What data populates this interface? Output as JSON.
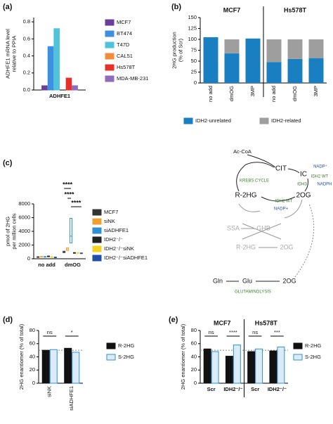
{
  "chart_data": [
    {
      "type": "bar",
      "panel": "(a)",
      "y_label": [
        "ADHFE1 mRNA level",
        "relative to PPIA"
      ],
      "categories": [
        "ADHFE1"
      ],
      "series": [
        {
          "name": "MCF7",
          "color": "#6a3d9a",
          "values": [
            0.05
          ]
        },
        {
          "name": "BT474",
          "color": "#3d8fe0",
          "values": [
            0.51
          ]
        },
        {
          "name": "T47D",
          "color": "#4fc3d9",
          "values": [
            0.72
          ]
        },
        {
          "name": "CAL51",
          "color": "#f28c38",
          "values": [
            0.0
          ]
        },
        {
          "name": "Hs578T",
          "color": "#e8302a",
          "values": [
            0.14
          ]
        },
        {
          "name": "MDA-MB-231",
          "color": "#8e6bbf",
          "values": [
            0.05
          ]
        }
      ],
      "ylim": [
        0,
        0.85
      ],
      "yticks": [
        {
          "value": 0,
          "label": "0.0"
        },
        0.2,
        0.4,
        0.6,
        0.8
      ]
    },
    {
      "type": "stacked_bar",
      "panel": "(b)",
      "y_label": [
        "2HG production",
        "(% of Scr)"
      ],
      "groups": [
        "MCF7",
        "Hs578T"
      ],
      "categories": [
        "no add",
        "dmOG",
        "3MP",
        "no add",
        "dmOG",
        "3MP"
      ],
      "series": [
        {
          "name": "IDH2-unrelated",
          "color": "#1a7fc1",
          "values": [
            105,
            68,
            102,
            48,
            55,
            57
          ]
        },
        {
          "name": "IDH2-related",
          "color": "#9e9e9e",
          "values": [
            0,
            32,
            0,
            52,
            45,
            43
          ]
        }
      ],
      "ylim": [
        0,
        150
      ],
      "yticks": [
        0,
        25,
        50,
        75,
        100,
        125,
        150
      ],
      "xtick_rotation": -90
    },
    {
      "type": "box",
      "panel": "(c)",
      "y_label": [
        "pmol of 2HG",
        "per million cells"
      ],
      "categories": [
        "no add",
        "dmOG"
      ],
      "series": [
        {
          "name": "MCF7",
          "color": "#333333",
          "values": [
            250,
            1000
          ],
          "q1": [
            200,
            900
          ],
          "q3": [
            300,
            1100
          ]
        },
        {
          "name": "siNK",
          "color": "#f0a030",
          "values": [
            300,
            1400
          ],
          "q1": [
            250,
            1200
          ],
          "q3": [
            350,
            1600
          ]
        },
        {
          "name": "siADHFE1",
          "color": "#2f8fd6",
          "values": [
            280,
            3300
          ],
          "q1": [
            230,
            2300
          ],
          "q3": [
            330,
            5900
          ]
        },
        {
          "name": "IDH2⁻/⁻",
          "color": "#222222",
          "values": [
            350,
            850
          ],
          "q1": [
            300,
            800
          ],
          "q3": [
            400,
            900
          ]
        },
        {
          "name": "IDH2⁻/⁻siNK",
          "color": "#f5d020",
          "values": [
            250,
            850
          ],
          "q1": [
            200,
            800
          ],
          "q3": [
            300,
            900
          ]
        },
        {
          "name": "IDH2⁻/⁻siADHFE1",
          "color": "#1f4fa8",
          "values": [
            200,
            800
          ],
          "q1": [
            150,
            750
          ],
          "q3": [
            250,
            850
          ]
        }
      ],
      "annotations": [
        "****",
        "****",
        "****"
      ],
      "ylim": [
        0,
        8000
      ],
      "yticks": [
        0,
        2000,
        4000,
        6000,
        8000
      ]
    },
    {
      "type": "bar",
      "panel": "(d)",
      "y_label": [
        "2HG enantiomer (% of total)"
      ],
      "categories": [
        "siNK",
        "siADHFE1"
      ],
      "series": [
        {
          "name": "R-2HG",
          "color": "#111111",
          "edgecolor": "#111111",
          "values": [
            50,
            53
          ]
        },
        {
          "name": "S-2HG",
          "color": "#dcecf7",
          "edgecolor": "#2f8fd6",
          "values": [
            51,
            47
          ]
        }
      ],
      "annotations": [
        "ns",
        "*"
      ],
      "refline": 50,
      "ylim": [
        0,
        80
      ],
      "yticks": [
        0,
        20,
        40,
        60,
        80
      ],
      "xtick_rotation": -90
    },
    {
      "type": "bar",
      "panel": "(e)",
      "y_label": [
        "2HG enantiomer (% of total)"
      ],
      "groups": [
        "MCF7",
        "Hs578T"
      ],
      "categories": [
        "Scr",
        "IDH2⁻/⁻",
        "Scr",
        "IDH2⁻/⁻"
      ],
      "series": [
        {
          "name": "R-2HG",
          "color": "#111111",
          "edgecolor": "#111111",
          "values": [
            52,
            41,
            48,
            49
          ]
        },
        {
          "name": "S-2HG",
          "color": "#dcecf7",
          "edgecolor": "#2f8fd6",
          "values": [
            48,
            58,
            52,
            55
          ]
        }
      ],
      "annotations": [
        "ns",
        "****",
        "ns",
        "***"
      ],
      "refline": 50,
      "ylim": [
        0,
        80
      ],
      "yticks": [
        0,
        20,
        40,
        60,
        80
      ]
    }
  ],
  "pathway": {
    "labels": [
      "Ac-CoA",
      "CIT",
      "IC",
      "NADP⁺",
      "IDH2 WT",
      "IDH3",
      "NADPH",
      "KREBS CYCLE",
      "R-2HG",
      "2OG",
      "IDH2 WT",
      "NADP+",
      "SSA",
      "GHB",
      "R-2HG",
      "2OG",
      "Gln",
      "Glu",
      "2OG",
      "GLUTAMINOLYSIS"
    ]
  }
}
